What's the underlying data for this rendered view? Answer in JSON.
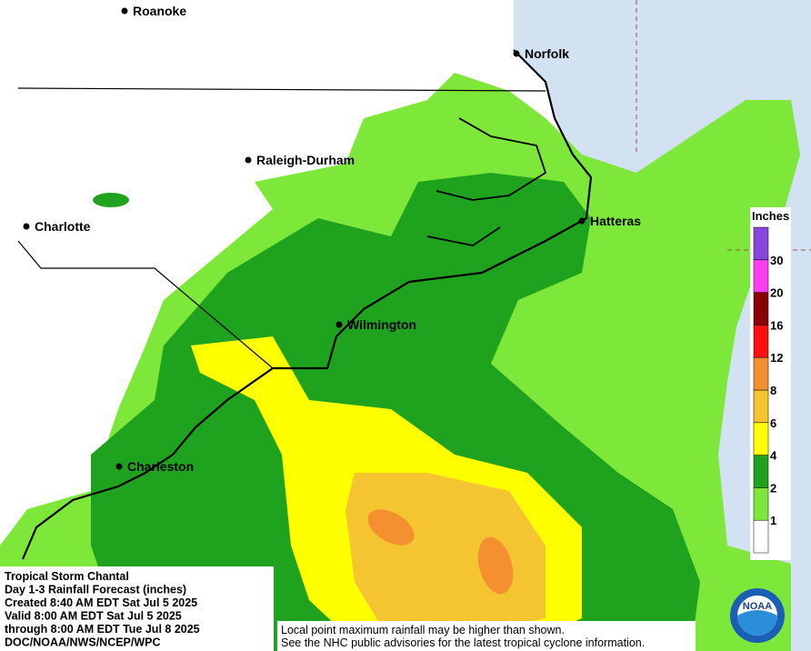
{
  "map": {
    "cities": [
      "Roanoke",
      "Norfolk",
      "Raleigh-Durham",
      "Charlotte",
      "Hatteras",
      "Wilmington",
      "Charleston"
    ],
    "legend": {
      "title": "Inches",
      "ticks": [
        1,
        2,
        4,
        6,
        8,
        12,
        16,
        20,
        30
      ],
      "colors": [
        "#ffffff",
        "#7ee83a",
        "#1fa31f",
        "#ffff00",
        "#f5c431",
        "#f59030",
        "#ff1010",
        "#8c0000",
        "#ff3cf0",
        "#8a44e0"
      ]
    },
    "info_box": {
      "lines": [
        "Tropical Storm Chantal",
        "Day 1-3 Rainfall Forecast (inches)",
        "Created 8:40 AM EDT Sat Jul 5 2025",
        "Valid 8:00 AM EDT Sat Jul 5 2025",
        "through 8:00 AM EDT Tue Jul 8 2025",
        "DOC/NOAA/NWS/NCEP/WPC"
      ]
    },
    "disclaimer": {
      "lines": [
        "Local point maximum rainfall may be higher than shown.",
        "See the NHC public advisories for the latest tropical cyclone information."
      ]
    },
    "logo_text": "NOAA"
  }
}
